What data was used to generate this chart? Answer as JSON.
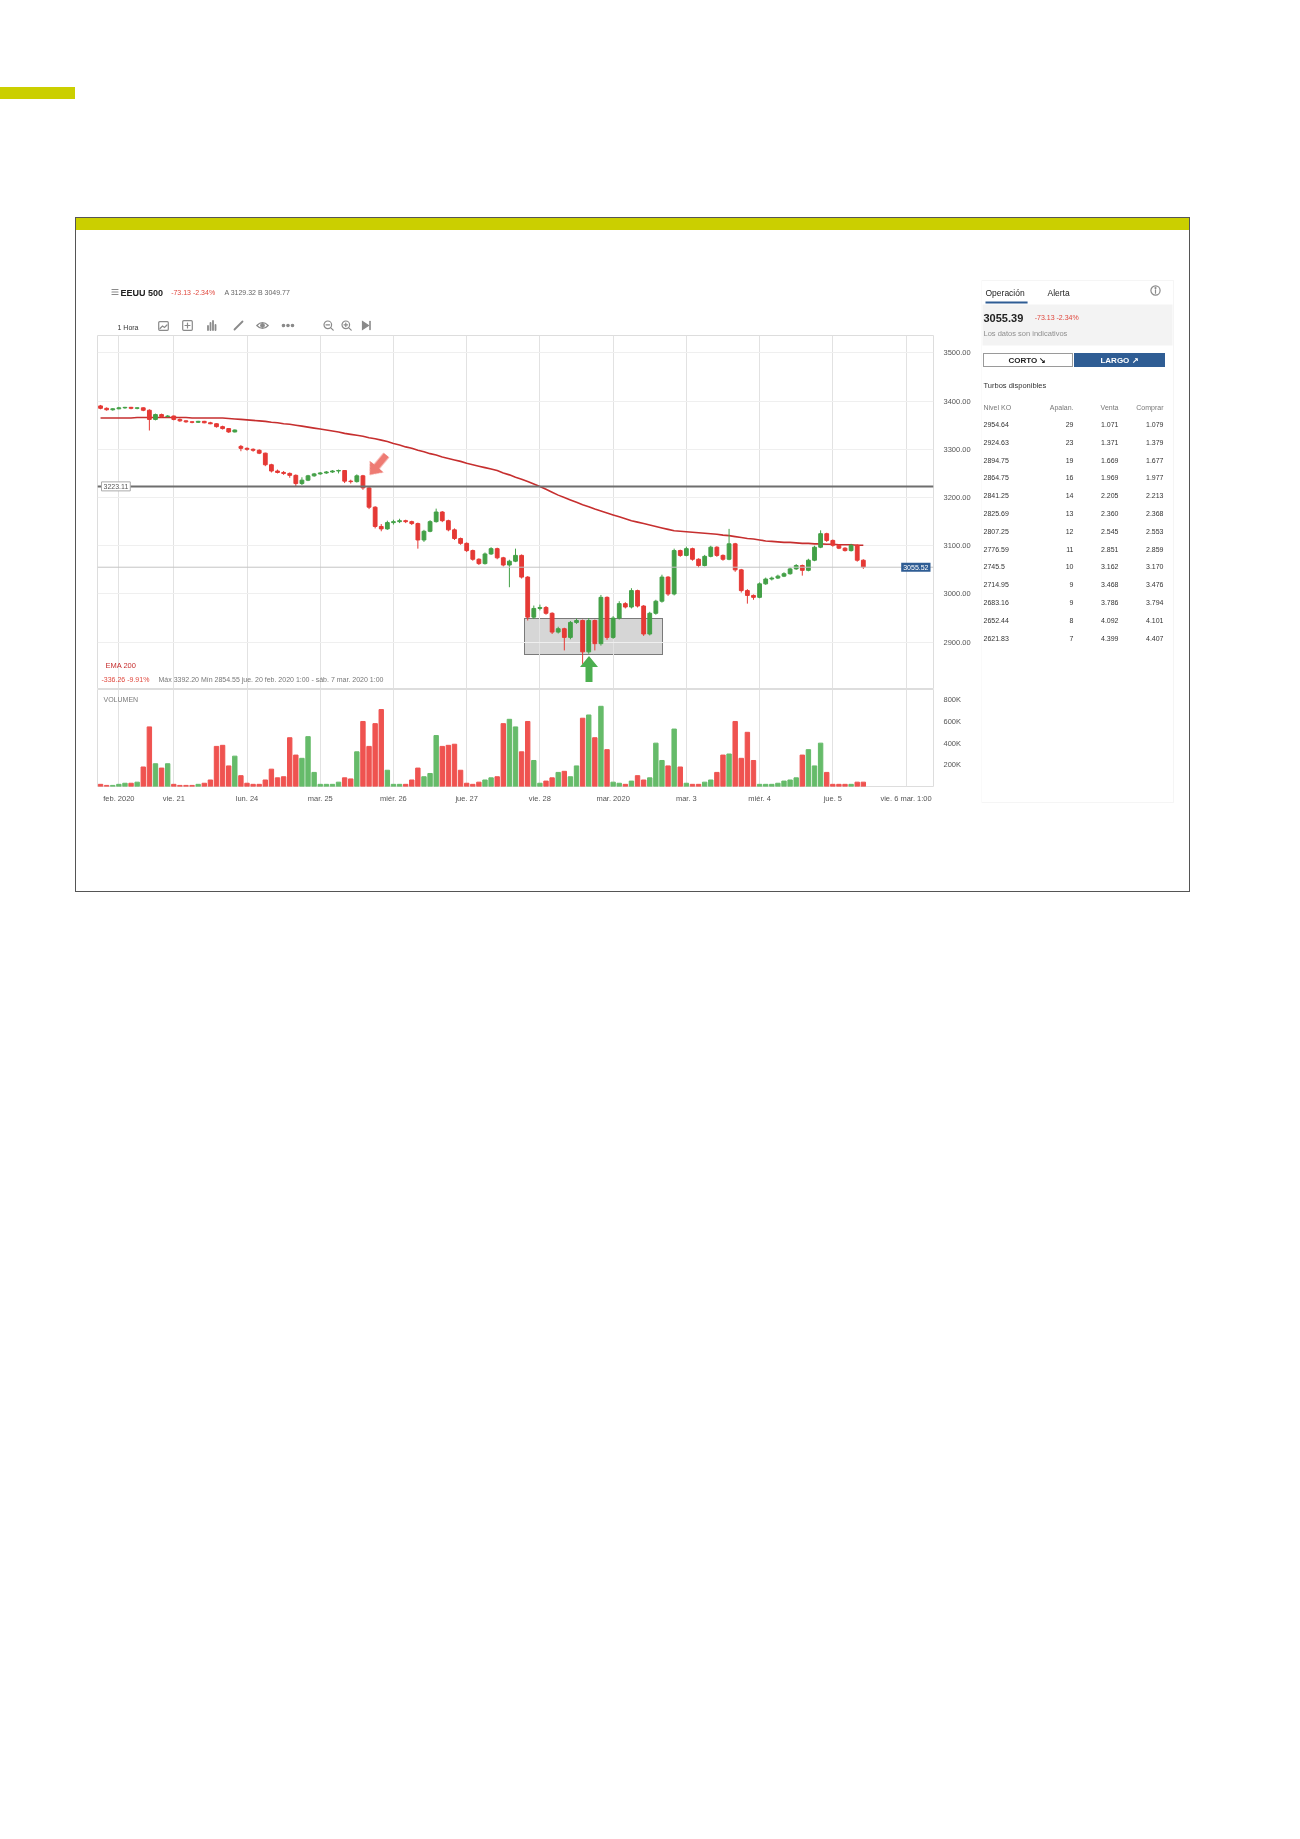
{
  "chart_data": [
    {
      "type": "candlestick",
      "title": "EEUU 500",
      "subtitle": "-73.13 -2.34%",
      "annotations": [
        "A 3129.32 B 3049.77",
        "1 Hora",
        "-336.26 -9.91%",
        "Máx 3392.20 Mín 2854.55 jue. 20 feb. 2020 1:00 - sáb. 7 mar. 2020 1:00"
      ],
      "categories": [
        null,
        null,
        null,
        null,
        null,
        null,
        null,
        null,
        null,
        null,
        null,
        null,
        null,
        null,
        null,
        null,
        null,
        null,
        null,
        null,
        null,
        null,
        null,
        null,
        null,
        null,
        null,
        null,
        null,
        null,
        null,
        null,
        null,
        null,
        null,
        null,
        null,
        null,
        null,
        null,
        null,
        null,
        null,
        null,
        null,
        null,
        null,
        null,
        null,
        null,
        null,
        null,
        null,
        null,
        null,
        null,
        null,
        null,
        null,
        null,
        null,
        null,
        null,
        null,
        null,
        null,
        null,
        null,
        null,
        null,
        null,
        null,
        null,
        null,
        null,
        null,
        null,
        null,
        null,
        null,
        null,
        null,
        null,
        null,
        null,
        null,
        null,
        null,
        null,
        null,
        null,
        null,
        null,
        null,
        null,
        null,
        null,
        null,
        null,
        null,
        null,
        null,
        null,
        null,
        null,
        null,
        null,
        null,
        null,
        null,
        null,
        null,
        null,
        null,
        null,
        null,
        null,
        null,
        null,
        null,
        null,
        null,
        null,
        null,
        null,
        null,
        null,
        null,
        null,
        null,
        null,
        null,
        null,
        null,
        null,
        null,
        null
      ],
      "ohlc": [
        [
          3390,
          3392,
          3383,
          3385
        ],
        [
          3385,
          3387,
          3380,
          3382
        ],
        [
          3382,
          3385,
          3380,
          3384
        ],
        [
          3384,
          3388,
          3383,
          3386
        ],
        [
          3386,
          3388,
          3384,
          3387
        ],
        [
          3387,
          3388,
          3383,
          3385
        ],
        [
          3385,
          3387,
          3383,
          3386
        ],
        [
          3386,
          3387,
          3379,
          3381
        ],
        [
          3381,
          3383,
          3339,
          3362
        ],
        [
          3362,
          3374,
          3360,
          3372
        ],
        [
          3372,
          3374,
          3366,
          3368
        ],
        [
          3368,
          3371,
          3366,
          3369
        ],
        [
          3369,
          3370,
          3360,
          3362
        ],
        [
          3362,
          3364,
          3357,
          3359
        ],
        [
          3359,
          3360,
          3355,
          3357
        ],
        [
          3357,
          3358,
          3354,
          3356
        ],
        [
          3356,
          3359,
          3355,
          3358
        ],
        [
          3358,
          3359,
          3354,
          3355
        ],
        [
          3355,
          3357,
          3352,
          3353
        ],
        [
          3353,
          3354,
          3345,
          3347
        ],
        [
          3347,
          3349,
          3341,
          3343
        ],
        [
          3343,
          3344,
          3334,
          3336
        ],
        [
          3336,
          3341,
          3335,
          3340
        ],
        [
          3306,
          3309,
          3296,
          3302
        ],
        [
          3302,
          3304,
          3297,
          3300
        ],
        [
          3300,
          3302,
          3295,
          3298
        ],
        [
          3298,
          3300,
          3290,
          3292
        ],
        [
          3292,
          3293,
          3265,
          3268
        ],
        [
          3268,
          3270,
          3252,
          3255
        ],
        [
          3255,
          3258,
          3250,
          3252
        ],
        [
          3252,
          3255,
          3247,
          3250
        ],
        [
          3250,
          3252,
          3241,
          3246
        ],
        [
          3246,
          3248,
          3222,
          3229
        ],
        [
          3229,
          3242,
          3226,
          3236
        ],
        [
          3236,
          3247,
          3234,
          3245
        ],
        [
          3245,
          3251,
          3243,
          3249
        ],
        [
          3249,
          3253,
          3247,
          3251
        ],
        [
          3251,
          3255,
          3249,
          3253
        ],
        [
          3253,
          3257,
          3251,
          3255
        ],
        [
          3255,
          3258,
          3250,
          3256
        ],
        [
          3256,
          3257,
          3230,
          3234
        ],
        [
          3234,
          3237,
          3229,
          3233
        ],
        [
          3233,
          3248,
          3231,
          3245
        ],
        [
          3245,
          3247,
          3216,
          3220
        ],
        [
          3220,
          3222,
          3176,
          3180
        ],
        [
          3180,
          3182,
          3136,
          3140
        ],
        [
          3140,
          3145,
          3130,
          3135
        ],
        [
          3135,
          3152,
          3133,
          3148
        ],
        [
          3148,
          3154,
          3144,
          3150
        ],
        [
          3150,
          3156,
          3147,
          3152
        ],
        [
          3152,
          3154,
          3147,
          3150
        ],
        [
          3150,
          3152,
          3143,
          3146
        ],
        [
          3146,
          3148,
          3094,
          3112
        ],
        [
          3112,
          3133,
          3108,
          3130
        ],
        [
          3130,
          3153,
          3128,
          3150
        ],
        [
          3150,
          3177,
          3148,
          3170
        ],
        [
          3170,
          3172,
          3149,
          3152
        ],
        [
          3152,
          3154,
          3130,
          3133
        ],
        [
          3133,
          3136,
          3112,
          3115
        ],
        [
          3115,
          3117,
          3102,
          3105
        ],
        [
          3105,
          3107,
          3087,
          3090
        ],
        [
          3090,
          3092,
          3069,
          3072
        ],
        [
          3072,
          3074,
          3060,
          3063
        ],
        [
          3063,
          3086,
          3061,
          3083
        ],
        [
          3083,
          3097,
          3081,
          3094
        ],
        [
          3094,
          3096,
          3072,
          3075
        ],
        [
          3075,
          3077,
          3057,
          3060
        ],
        [
          3060,
          3071,
          3014,
          3068
        ],
        [
          3068,
          3094,
          3066,
          3080
        ],
        [
          3080,
          3082,
          3032,
          3035
        ],
        [
          3035,
          3037,
          2945,
          2952
        ],
        [
          2952,
          2976,
          2948,
          2970
        ],
        [
          2970,
          2978,
          2966,
          2972
        ],
        [
          2972,
          2975,
          2957,
          2960
        ],
        [
          2960,
          2962,
          2917,
          2921
        ],
        [
          2921,
          2932,
          2918,
          2928
        ],
        [
          2928,
          2930,
          2883,
          2910
        ],
        [
          2910,
          2944,
          2906,
          2941
        ],
        [
          2941,
          2949,
          2938,
          2945
        ],
        [
          2945,
          2947,
          2855,
          2880
        ],
        [
          2880,
          2950,
          2876,
          2945
        ],
        [
          2945,
          2947,
          2883,
          2897
        ],
        [
          2897,
          2998,
          2893,
          2993
        ],
        [
          2993,
          2995,
          2905,
          2910
        ],
        [
          2910,
          2954,
          2907,
          2950
        ],
        [
          2950,
          2985,
          2947,
          2980
        ],
        [
          2980,
          2983,
          2970,
          2973
        ],
        [
          2973,
          3012,
          2970,
          3007
        ],
        [
          3007,
          3009,
          2972,
          2975
        ],
        [
          2975,
          2977,
          2913,
          2917
        ],
        [
          2917,
          2963,
          2914,
          2960
        ],
        [
          2960,
          2988,
          2957,
          2985
        ],
        [
          2985,
          3040,
          2982,
          3035
        ],
        [
          3035,
          3037,
          2996,
          3000
        ],
        [
          3000,
          3094,
          2997,
          3090
        ],
        [
          3090,
          3092,
          3077,
          3080
        ],
        [
          3080,
          3098,
          3078,
          3094
        ],
        [
          3094,
          3096,
          3069,
          3072
        ],
        [
          3072,
          3074,
          3055,
          3059
        ],
        [
          3059,
          3081,
          3057,
          3078
        ],
        [
          3078,
          3100,
          3076,
          3097
        ],
        [
          3097,
          3099,
          3077,
          3080
        ],
        [
          3080,
          3082,
          3069,
          3072
        ],
        [
          3072,
          3135,
          3070,
          3104
        ],
        [
          3104,
          3106,
          3046,
          3050
        ],
        [
          3050,
          3052,
          3003,
          3007
        ],
        [
          3007,
          3010,
          2980,
          2997
        ],
        [
          2997,
          2999,
          2988,
          2993
        ],
        [
          2993,
          3024,
          2991,
          3021
        ],
        [
          3021,
          3034,
          3019,
          3031
        ],
        [
          3031,
          3036,
          3028,
          3033
        ],
        [
          3033,
          3040,
          3031,
          3037
        ],
        [
          3037,
          3045,
          3035,
          3042
        ],
        [
          3042,
          3055,
          3040,
          3052
        ],
        [
          3052,
          3062,
          3050,
          3059
        ],
        [
          3059,
          3061,
          3038,
          3049
        ],
        [
          3049,
          3073,
          3047,
          3070
        ],
        [
          3070,
          3100,
          3068,
          3097
        ],
        [
          3097,
          3132,
          3095,
          3125
        ],
        [
          3125,
          3127,
          3108,
          3111
        ],
        [
          3111,
          3113,
          3098,
          3101
        ],
        [
          3101,
          3103,
          3093,
          3095
        ],
        [
          3095,
          3097,
          3088,
          3090
        ],
        [
          3090,
          3104,
          3088,
          3101
        ],
        [
          3101,
          3103,
          3067,
          3070
        ],
        [
          3070,
          3072,
          3052,
          3056
        ],
        null,
        null,
        null,
        null,
        null,
        null,
        null,
        null,
        null,
        null,
        null
      ],
      "colors": [
        "#e53935",
        "#e53935",
        "#43a047",
        "#43a047",
        "#43a047",
        "#e53935",
        "#43a047",
        "#e53935",
        "#e53935",
        "#43a047",
        "#e53935",
        "#43a047",
        "#e53935",
        "#e53935",
        "#e53935",
        "#e53935",
        "#43a047",
        "#e53935",
        "#e53935",
        "#e53935",
        "#e53935",
        "#e53935",
        "#43a047",
        "#e53935",
        "#e53935",
        "#e53935",
        "#e53935",
        "#e53935",
        "#e53935",
        "#e53935",
        "#e53935",
        "#e53935",
        "#e53935",
        "#43a047",
        "#43a047",
        "#43a047",
        "#43a047",
        "#43a047",
        "#43a047",
        "#43a047",
        "#e53935",
        "#e53935",
        "#43a047",
        "#e53935",
        "#e53935",
        "#e53935",
        "#e53935",
        "#43a047",
        "#43a047",
        "#43a047",
        "#e53935",
        "#e53935",
        "#e53935",
        "#43a047",
        "#43a047",
        "#43a047",
        "#e53935",
        "#e53935",
        "#e53935",
        "#e53935",
        "#e53935",
        "#e53935",
        "#e53935",
        "#43a047",
        "#43a047",
        "#e53935",
        "#e53935",
        "#43a047",
        "#43a047",
        "#e53935",
        "#e53935",
        "#43a047",
        "#43a047",
        "#e53935",
        "#e53935",
        "#43a047",
        "#e53935",
        "#43a047",
        "#43a047",
        "#e53935",
        "#43a047",
        "#e53935",
        "#43a047",
        "#e53935",
        "#43a047",
        "#43a047",
        "#e53935",
        "#43a047",
        "#e53935",
        "#e53935",
        "#43a047",
        "#43a047",
        "#43a047",
        "#e53935",
        "#43a047",
        "#e53935",
        "#43a047",
        "#e53935",
        "#e53935",
        "#43a047",
        "#43a047",
        "#e53935",
        "#e53935",
        "#43a047",
        "#e53935",
        "#e53935",
        "#e53935",
        "#e53935",
        "#43a047",
        "#43a047",
        "#43a047",
        "#43a047",
        "#43a047",
        "#43a047",
        "#43a047",
        "#e53935",
        "#43a047",
        "#43a047",
        "#43a047",
        "#e53935",
        "#e53935",
        "#e53935",
        "#e53935",
        "#43a047",
        "#e53935",
        "#e53935",
        null,
        null,
        null,
        null,
        null,
        null,
        null,
        null,
        null,
        null,
        null
      ],
      "series": [
        {
          "type": "line",
          "name": "EMA 200",
          "color": "#c62f2f",
          "values": [
            3365,
            3365,
            3365,
            3365,
            3365,
            3365,
            3366,
            3366,
            3366,
            3366,
            3366,
            3366,
            3366,
            3366,
            3366,
            3365,
            3365,
            3365,
            3365,
            3365,
            3365,
            3364,
            3363,
            3362,
            3361,
            3360,
            3359,
            3358,
            3356,
            3355,
            3353,
            3352,
            3350,
            3348,
            3346,
            3344,
            3342,
            3340,
            3338,
            3336,
            3333,
            3331,
            3329,
            3327,
            3324,
            3322,
            3319,
            3316,
            3312,
            3309,
            3305,
            3302,
            3298,
            3295,
            3291,
            3288,
            3284,
            3281,
            3278,
            3275,
            3271,
            3268,
            3265,
            3262,
            3259,
            3256,
            3251,
            3247,
            3242,
            3238,
            3233,
            3228,
            3223,
            3217,
            3211,
            3205,
            3200,
            3195,
            3190,
            3185,
            3181,
            3176,
            3172,
            3168,
            3164,
            3160,
            3156,
            3152,
            3149,
            3146,
            3143,
            3140,
            3137,
            3134,
            3131,
            3130,
            3129,
            3128,
            3127,
            3126,
            3125,
            3124,
            3122,
            3121,
            3119,
            3117,
            3115,
            3114,
            3112,
            3110,
            3109,
            3108,
            3107,
            3107,
            3106,
            3105,
            3105,
            3104,
            3104,
            3103,
            3103,
            3102,
            3102,
            3102,
            3101,
            3101,
            null,
            null,
            null,
            null,
            null,
            null,
            null,
            null,
            null,
            null,
            null
          ]
        }
      ],
      "ylim": [
        2804,
        3536
      ],
      "yticks": [
        {
          "value": 2900,
          "label": "2900.00"
        },
        {
          "value": 3000,
          "label": "3000.00"
        },
        {
          "value": 3100,
          "label": "3100.00"
        },
        {
          "value": 3200,
          "label": "3200.00"
        },
        {
          "value": 3300,
          "label": "3300.00"
        },
        {
          "value": 3400,
          "label": "3400.00"
        },
        {
          "value": 3500,
          "label": "3500.00"
        }
      ],
      "ref_lines": [
        {
          "axis": "y",
          "value": 3223.11,
          "label": "3223.11",
          "color": "#6e6e6e"
        },
        {
          "axis": "y",
          "value": 3055.52,
          "label": "3055.52",
          "color": "#c4c4c4"
        }
      ],
      "grid": true,
      "tick_labels": "y",
      "legend": "bottom left"
    },
    {
      "type": "bar",
      "title": "VOLUMEN",
      "categories": [
        null,
        null,
        null,
        "feb. 2020",
        null,
        null,
        null,
        null,
        null,
        null,
        null,
        null,
        "vie. 21",
        null,
        null,
        null,
        null,
        null,
        null,
        null,
        null,
        null,
        null,
        null,
        "lun. 24",
        null,
        null,
        null,
        null,
        null,
        null,
        null,
        null,
        null,
        null,
        null,
        "mar. 25",
        null,
        null,
        null,
        null,
        null,
        null,
        null,
        null,
        null,
        null,
        null,
        "miér. 26",
        null,
        null,
        null,
        null,
        null,
        null,
        null,
        null,
        null,
        null,
        null,
        "jue. 27",
        null,
        null,
        null,
        null,
        null,
        null,
        null,
        null,
        null,
        null,
        null,
        "vie. 28",
        null,
        null,
        null,
        null,
        null,
        null,
        null,
        null,
        null,
        null,
        null,
        "mar. 2020",
        null,
        null,
        null,
        null,
        null,
        null,
        null,
        null,
        null,
        null,
        null,
        "mar. 3",
        null,
        null,
        null,
        null,
        null,
        null,
        null,
        null,
        null,
        null,
        null,
        "miér. 4",
        null,
        null,
        null,
        null,
        null,
        null,
        null,
        null,
        null,
        null,
        null,
        "jue. 5",
        null,
        null,
        null,
        null,
        null,
        null,
        null,
        null,
        null,
        null,
        null,
        "vie. 6 mar. 1:00",
        null,
        null,
        null,
        null
      ],
      "values": [
        20000,
        10000,
        10000,
        20000,
        30000,
        30000,
        40000,
        180000,
        550000,
        210000,
        170000,
        210000,
        20000,
        10000,
        10000,
        10000,
        20000,
        30000,
        60000,
        370000,
        380000,
        190000,
        280000,
        100000,
        30000,
        20000,
        20000,
        60000,
        160000,
        80000,
        90000,
        450000,
        290000,
        260000,
        460000,
        130000,
        20000,
        20000,
        20000,
        40000,
        80000,
        70000,
        320000,
        600000,
        370000,
        580000,
        710000,
        150000,
        20000,
        20000,
        20000,
        60000,
        170000,
        90000,
        120000,
        470000,
        370000,
        380000,
        390000,
        150000,
        30000,
        20000,
        40000,
        60000,
        80000,
        90000,
        580000,
        620000,
        550000,
        320000,
        600000,
        240000,
        30000,
        50000,
        80000,
        130000,
        140000,
        90000,
        190000,
        630000,
        660000,
        450000,
        740000,
        340000,
        40000,
        30000,
        20000,
        50000,
        100000,
        60000,
        80000,
        400000,
        240000,
        190000,
        530000,
        180000,
        30000,
        20000,
        20000,
        40000,
        60000,
        130000,
        290000,
        300000,
        600000,
        260000,
        500000,
        240000,
        20000,
        20000,
        20000,
        30000,
        50000,
        60000,
        80000,
        290000,
        340000,
        190000,
        400000,
        130000,
        20000,
        20000,
        20000,
        20000,
        40000,
        40000,
        null,
        null,
        null,
        null,
        null,
        null,
        null,
        null,
        null,
        null,
        null
      ],
      "colors": [
        "#ef5350",
        "#ef5350",
        "#66bb6a",
        "#66bb6a",
        "#66bb6a",
        "#ef5350",
        "#66bb6a",
        "#ef5350",
        "#ef5350",
        "#66bb6a",
        "#ef5350",
        "#66bb6a",
        "#ef5350",
        "#ef5350",
        "#ef5350",
        "#ef5350",
        "#66bb6a",
        "#ef5350",
        "#ef5350",
        "#ef5350",
        "#ef5350",
        "#ef5350",
        "#66bb6a",
        "#ef5350",
        "#ef5350",
        "#ef5350",
        "#ef5350",
        "#ef5350",
        "#ef5350",
        "#ef5350",
        "#ef5350",
        "#ef5350",
        "#ef5350",
        "#66bb6a",
        "#66bb6a",
        "#66bb6a",
        "#66bb6a",
        "#66bb6a",
        "#66bb6a",
        "#66bb6a",
        "#ef5350",
        "#ef5350",
        "#66bb6a",
        "#ef5350",
        "#ef5350",
        "#ef5350",
        "#ef5350",
        "#66bb6a",
        "#66bb6a",
        "#66bb6a",
        "#ef5350",
        "#ef5350",
        "#ef5350",
        "#66bb6a",
        "#66bb6a",
        "#66bb6a",
        "#ef5350",
        "#ef5350",
        "#ef5350",
        "#ef5350",
        "#ef5350",
        "#ef5350",
        "#ef5350",
        "#66bb6a",
        "#66bb6a",
        "#ef5350",
        "#ef5350",
        "#66bb6a",
        "#66bb6a",
        "#ef5350",
        "#ef5350",
        "#66bb6a",
        "#66bb6a",
        "#ef5350",
        "#ef5350",
        "#66bb6a",
        "#ef5350",
        "#66bb6a",
        "#66bb6a",
        "#ef5350",
        "#66bb6a",
        "#ef5350",
        "#66bb6a",
        "#ef5350",
        "#66bb6a",
        "#66bb6a",
        "#ef5350",
        "#66bb6a",
        "#ef5350",
        "#ef5350",
        "#66bb6a",
        "#66bb6a",
        "#66bb6a",
        "#ef5350",
        "#66bb6a",
        "#ef5350",
        "#66bb6a",
        "#ef5350",
        "#ef5350",
        "#66bb6a",
        "#66bb6a",
        "#ef5350",
        "#ef5350",
        "#66bb6a",
        "#ef5350",
        "#ef5350",
        "#ef5350",
        "#ef5350",
        "#66bb6a",
        "#66bb6a",
        "#66bb6a",
        "#66bb6a",
        "#66bb6a",
        "#66bb6a",
        "#66bb6a",
        "#ef5350",
        "#66bb6a",
        "#66bb6a",
        "#66bb6a",
        "#ef5350",
        "#ef5350",
        "#ef5350",
        "#ef5350",
        "#66bb6a",
        "#ef5350",
        "#ef5350",
        null,
        null,
        null,
        null,
        null,
        null,
        null,
        null,
        null,
        null,
        null
      ],
      "ylim": [
        0,
        895000
      ],
      "yticks": [
        {
          "value": 200000,
          "label": "200K"
        },
        {
          "value": 400000,
          "label": "400K"
        },
        {
          "value": 600000,
          "label": "600K"
        },
        {
          "value": 800000,
          "label": "800K"
        }
      ],
      "grid": "x"
    },
    {
      "type": "other",
      "annotations": [
        "Operación",
        "Alerta",
        "3055.39",
        "-73.13 -2.34%",
        "Los datos son indicativos",
        "CORTO ↘",
        "LARGO ↗",
        "Turbos disponibles"
      ],
      "categories": [
        "Nivel KO",
        "Apalan.",
        "Venta",
        "Comprar"
      ],
      "cell_labels": [
        [
          "2954.64",
          "29",
          "1.071",
          "1.079"
        ],
        [
          "2924.63",
          "23",
          "1.371",
          "1.379"
        ],
        [
          "2894.75",
          "19",
          "1.669",
          "1.677"
        ],
        [
          "2864.75",
          "16",
          "1.969",
          "1.977"
        ],
        [
          "2841.25",
          "14",
          "2.205",
          "2.213"
        ],
        [
          "2825.69",
          "13",
          "2.360",
          "2.368"
        ],
        [
          "2807.25",
          "12",
          "2.545",
          "2.553"
        ],
        [
          "2776.59",
          "11",
          "2.851",
          "2.859"
        ],
        [
          "2745.5",
          "10",
          "3.162",
          "3.170"
        ],
        [
          "2714.95",
          "9",
          "3.468",
          "3.476"
        ],
        [
          "2683.16",
          "9",
          "3.786",
          "3.794"
        ],
        [
          "2652.44",
          "8",
          "4.092",
          "4.101"
        ],
        [
          "2621.83",
          "7",
          "4.399",
          "4.407"
        ]
      ]
    }
  ]
}
